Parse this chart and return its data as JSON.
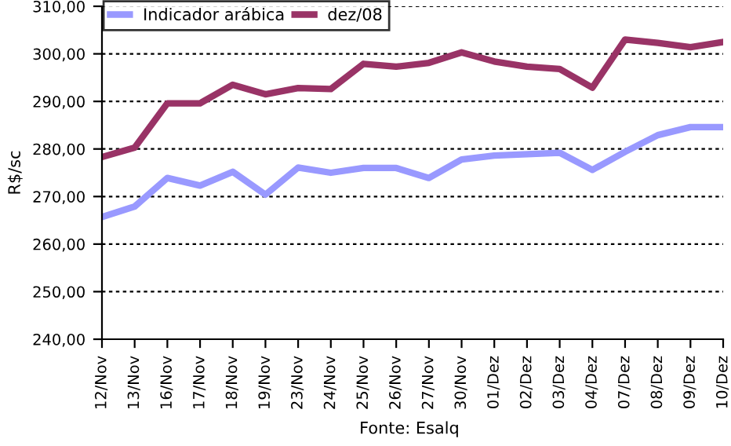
{
  "chart_data": {
    "type": "line",
    "ylabel": "R$/sc",
    "categories": [
      "12/Nov",
      "13/Nov",
      "16/Nov",
      "17/Nov",
      "18/Nov",
      "19/Nov",
      "23/Nov",
      "24/Nov",
      "25/Nov",
      "26/Nov",
      "27/Nov",
      "30/Nov",
      "01/Dez",
      "02/Dez",
      "03/Dez",
      "04/Dez",
      "07/Dez",
      "08/Dez",
      "09/Dez",
      "10/Dez"
    ],
    "series": [
      {
        "name": "Indicador arábica",
        "color": "#9999ff",
        "values": [
          265.7,
          267.9,
          273.9,
          272.3,
          275.2,
          270.4,
          276.1,
          275,
          276,
          276,
          273.9,
          277.8,
          278.6,
          278.9,
          279.2,
          275.6,
          279.4,
          282.9,
          284.6,
          284.6
        ]
      },
      {
        "name": "dez/08",
        "color": "#993366",
        "values": [
          278.3,
          280.3,
          289.6,
          289.6,
          293.5,
          291.5,
          292.8,
          292.6,
          297.9,
          297.3,
          298.1,
          300.3,
          298.4,
          297.3,
          296.8,
          292.9,
          303,
          302.3,
          301.4,
          302.5
        ]
      }
    ],
    "ylim": [
      240,
      310
    ],
    "yticks": [
      {
        "value": 240,
        "label": "240,00"
      },
      {
        "value": 250,
        "label": "250,00"
      },
      {
        "value": 260,
        "label": "260,00"
      },
      {
        "value": 270,
        "label": "270,00"
      },
      {
        "value": 280,
        "label": "280,00"
      },
      {
        "value": 290,
        "label": "290,00"
      },
      {
        "value": 300,
        "label": "300,00"
      },
      {
        "value": 310,
        "label": "310,00"
      }
    ],
    "grid": "y",
    "legend": "top left",
    "marker": "none",
    "line_style": "solid",
    "annotations": [
      "Fonte: Esalq"
    ]
  }
}
